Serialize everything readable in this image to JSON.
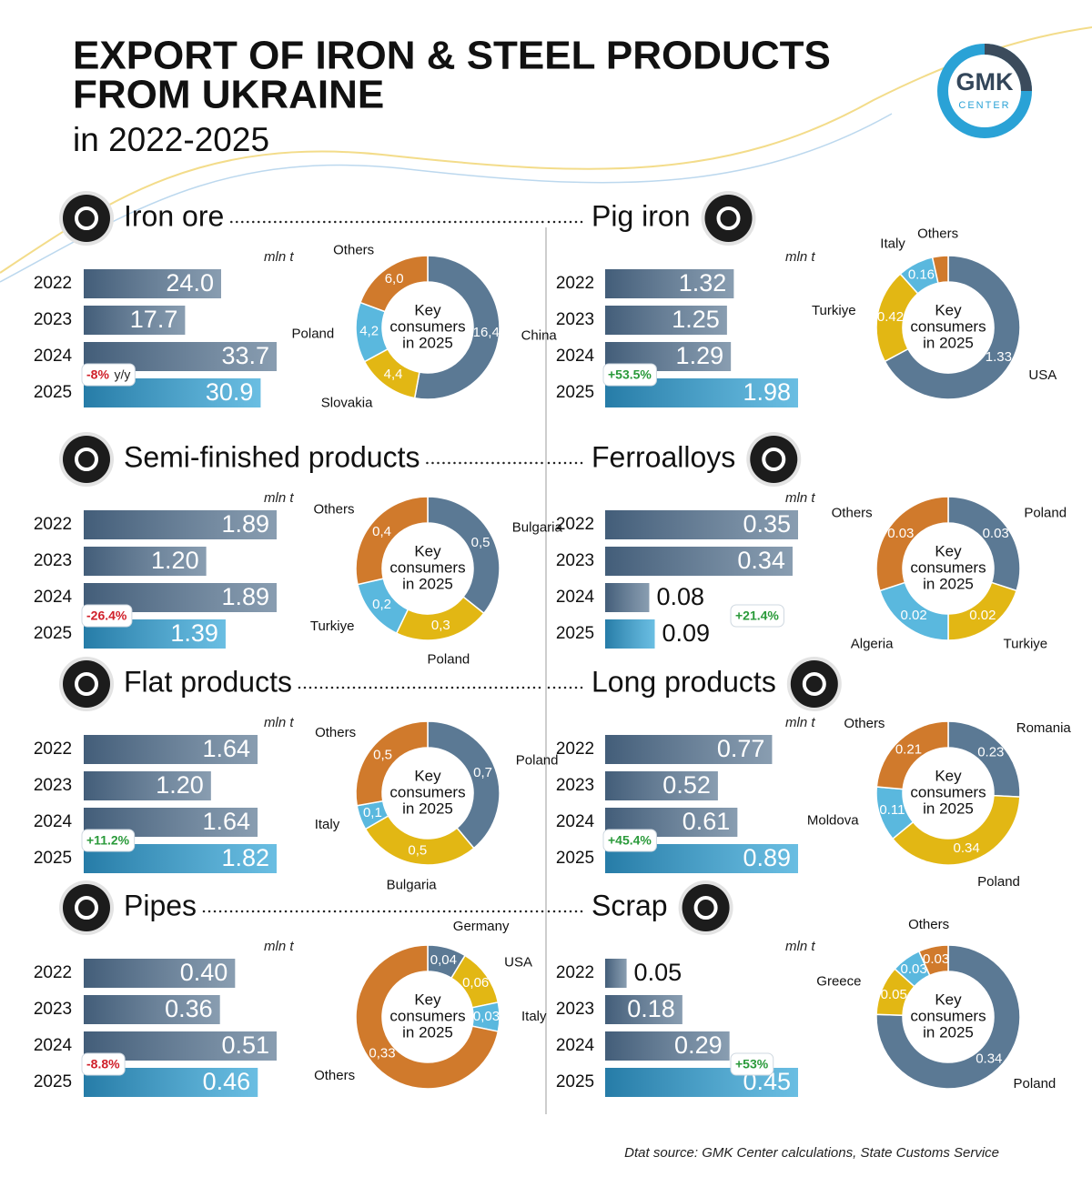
{
  "header": {
    "title_line1": "EXPORT OF IRON & STEEL PRODUCTS",
    "title_line2": "FROM UKRAINE",
    "subtitle": "in 2022-2025"
  },
  "logo": {
    "name": "GMK",
    "sub": "CENTER"
  },
  "source": "Dtat source: GMK Center calculations, State Customs Service",
  "chart_data": [
    {
      "type": "bar",
      "title": "Iron ore",
      "unit": "mln t",
      "categories": [
        "2022",
        "2023",
        "2024",
        "2025"
      ],
      "values": [
        24.0,
        17.7,
        33.7,
        30.9
      ],
      "value_labels": [
        "24.0",
        "17.7",
        "33.7",
        "30.9"
      ],
      "change": "-8%",
      "change_note": "y/y",
      "color": "#56738f",
      "highlight_color": "#2aa2d6"
    },
    {
      "type": "donut",
      "center_label": [
        "Key",
        "consumers",
        "in 2025"
      ],
      "categories": [
        "China",
        "Slovakia",
        "Poland",
        "Others"
      ],
      "values": [
        16.4,
        4.4,
        4.2,
        6.0
      ],
      "value_labels": [
        "16,4",
        "4,4",
        "4,2",
        "6,0"
      ],
      "colors": [
        "#5b7994",
        "#e2b714",
        "#5ab8de",
        "#d07a2c"
      ]
    },
    {
      "type": "bar",
      "title": "Pig iron",
      "unit": "mln t",
      "categories": [
        "2022",
        "2023",
        "2024",
        "2025"
      ],
      "values": [
        1.32,
        1.25,
        1.29,
        1.98
      ],
      "value_labels": [
        "1.32",
        "1.25",
        "1.29",
        "1.98"
      ],
      "change": "+53.5%",
      "color": "#56738f",
      "highlight_color": "#2aa2d6"
    },
    {
      "type": "donut",
      "center_label": [
        "Key",
        "consumers",
        "in 2025"
      ],
      "categories": [
        "USA",
        "Turkiye",
        "Italy",
        "Others"
      ],
      "values": [
        1.33,
        0.42,
        0.16,
        0.07
      ],
      "value_labels": [
        "1.33",
        "0.42",
        "0.16",
        null
      ],
      "colors": [
        "#5b7994",
        "#e2b714",
        "#5ab8de",
        "#d07a2c"
      ]
    },
    {
      "type": "bar",
      "title": "Semi-finished products",
      "unit": "mln t",
      "categories": [
        "2022",
        "2023",
        "2024",
        "2025"
      ],
      "values": [
        1.89,
        1.2,
        1.89,
        1.39
      ],
      "value_labels": [
        "1.89",
        "1.20",
        "1.89",
        "1.39"
      ],
      "change": "-26.4%",
      "color": "#56738f",
      "highlight_color": "#2aa2d6"
    },
    {
      "type": "donut",
      "center_label": [
        "Key",
        "consumers",
        "in 2025"
      ],
      "categories": [
        "Bulgaria",
        "Poland",
        "Turkiye",
        "Others"
      ],
      "values": [
        0.5,
        0.3,
        0.2,
        0.4
      ],
      "value_labels": [
        "0,5",
        "0,3",
        "0,2",
        "0,4"
      ],
      "colors": [
        "#5b7994",
        "#e2b714",
        "#5ab8de",
        "#d07a2c"
      ]
    },
    {
      "type": "bar",
      "title": "Ferroalloys",
      "unit": "mln t",
      "categories": [
        "2022",
        "2023",
        "2024",
        "2025"
      ],
      "values": [
        0.35,
        0.34,
        0.08,
        0.09
      ],
      "value_labels": [
        "0.35",
        "0.34",
        "0.08",
        "0.09"
      ],
      "change": "+21.4%",
      "color": "#56738f",
      "highlight_color": "#2aa2d6"
    },
    {
      "type": "donut",
      "center_label": [
        "Key",
        "consumers",
        "in 2025"
      ],
      "categories": [
        "Poland",
        "Turkiye",
        "Algeria",
        "Others"
      ],
      "values": [
        0.03,
        0.02,
        0.02,
        0.03
      ],
      "value_labels": [
        "0.03",
        "0.02",
        "0.02",
        "0.03"
      ],
      "colors": [
        "#5b7994",
        "#e2b714",
        "#5ab8de",
        "#d07a2c"
      ]
    },
    {
      "type": "bar",
      "title": "Flat products",
      "unit": "mln t",
      "categories": [
        "2022",
        "2023",
        "2024",
        "2025"
      ],
      "values": [
        1.64,
        1.2,
        1.64,
        1.82
      ],
      "value_labels": [
        "1.64",
        "1.20",
        "1.64",
        "1.82"
      ],
      "change": "+11.2%",
      "color": "#56738f",
      "highlight_color": "#2aa2d6"
    },
    {
      "type": "donut",
      "center_label": [
        "Key",
        "consumers",
        "in 2025"
      ],
      "categories": [
        "Poland",
        "Bulgaria",
        "Italy",
        "Others"
      ],
      "values": [
        0.7,
        0.5,
        0.1,
        0.5
      ],
      "value_labels": [
        "0,7",
        "0,5",
        "0,1",
        "0,5"
      ],
      "colors": [
        "#5b7994",
        "#e2b714",
        "#5ab8de",
        "#d07a2c"
      ]
    },
    {
      "type": "bar",
      "title": "Long products",
      "unit": "mln t",
      "categories": [
        "2022",
        "2023",
        "2024",
        "2025"
      ],
      "values": [
        0.77,
        0.52,
        0.61,
        0.89
      ],
      "value_labels": [
        "0.77",
        "0.52",
        "0.61",
        "0.89"
      ],
      "change": "+45.4%",
      "color": "#56738f",
      "highlight_color": "#2aa2d6"
    },
    {
      "type": "donut",
      "center_label": [
        "Key",
        "consumers",
        "in 2025"
      ],
      "categories": [
        "Romania",
        "Poland",
        "Moldova",
        "Others"
      ],
      "values": [
        0.23,
        0.34,
        0.11,
        0.21
      ],
      "value_labels": [
        "0.23",
        "0.34",
        "0.11",
        "0.21"
      ],
      "colors": [
        "#5b7994",
        "#e2b714",
        "#5ab8de",
        "#d07a2c"
      ]
    },
    {
      "type": "bar",
      "title": "Pipes",
      "unit": "mln t",
      "categories": [
        "2022",
        "2023",
        "2024",
        "2025"
      ],
      "values": [
        0.4,
        0.36,
        0.51,
        0.46
      ],
      "value_labels": [
        "0.40",
        "0.36",
        "0.51",
        "0.46"
      ],
      "change": "-8.8%",
      "color": "#56738f",
      "highlight_color": "#2aa2d6"
    },
    {
      "type": "donut",
      "center_label": [
        "Key",
        "consumers",
        "in 2025"
      ],
      "categories": [
        "Germany",
        "USA",
        "Italy",
        "Others"
      ],
      "values": [
        0.04,
        0.06,
        0.03,
        0.33
      ],
      "value_labels": [
        "0,04",
        "0,06",
        "0,03",
        "0,33"
      ],
      "colors": [
        "#5b7994",
        "#e2b714",
        "#5ab8de",
        "#d07a2c"
      ]
    },
    {
      "type": "bar",
      "title": "Scrap",
      "unit": "mln t",
      "categories": [
        "2022",
        "2023",
        "2024",
        "2025"
      ],
      "values": [
        0.05,
        0.18,
        0.29,
        0.45
      ],
      "value_labels": [
        "0.05",
        "0.18",
        "0.29",
        "0.45"
      ],
      "change": "+53%",
      "color": "#56738f",
      "highlight_color": "#2aa2d6"
    },
    {
      "type": "donut",
      "center_label": [
        "Key",
        "consumers",
        "in 2025"
      ],
      "categories": [
        "Poland",
        "Greece",
        null,
        "Others"
      ],
      "values": [
        0.34,
        0.05,
        0.03,
        0.03
      ],
      "value_labels": [
        "0.34",
        "0.05",
        "0.03",
        "0.03"
      ],
      "colors": [
        "#5b7994",
        "#e2b714",
        "#5ab8de",
        "#d07a2c"
      ]
    }
  ]
}
